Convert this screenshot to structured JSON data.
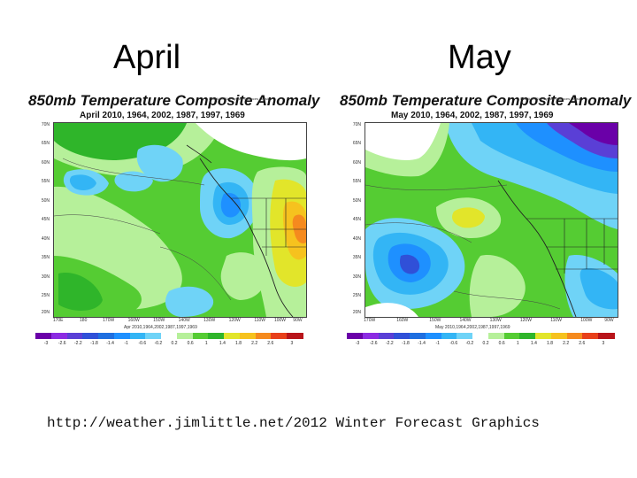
{
  "slide": {
    "left_heading": "April",
    "right_heading": "May",
    "source": "http://weather.jimlittle.net/2012 Winter Forecast Graphics"
  },
  "panels": [
    {
      "id": "april",
      "title": "850mb Temperature Composite Anomaly",
      "subtitle": "April 2010, 1964, 2002, 1987, 1997, 1969",
      "credit": "NOAA/ESRL Physical Sciences Division",
      "footer": "Apr 2010,1964,2002,1987,1997,1969",
      "lat_labels": [
        "70N",
        "65N",
        "60N",
        "55N",
        "50N",
        "45N",
        "40N",
        "35N",
        "30N",
        "25N",
        "20N"
      ],
      "lon_labels": [
        "170E",
        "180",
        "170W",
        "160W",
        "150W",
        "140W",
        "130W",
        "120W",
        "110W",
        "100W",
        "90W"
      ],
      "colorbar_labels": [
        "-3",
        "-2.6",
        "-2.2",
        "-1.8",
        "-1.4",
        "-1",
        "-0.6",
        "-0.2",
        "0.2",
        "0.6",
        "1",
        "1.4",
        "1.8",
        "2.2",
        "2.6",
        "3"
      ]
    },
    {
      "id": "may",
      "title": "850mb Temperature Composite Anomaly",
      "subtitle": "May 2010, 1964, 2002, 1987, 1997, 1969",
      "credit": "NOAA/ESRL Physical Sciences Division",
      "footer": "May 2010,1964,2002,1987,1997,1969",
      "lat_labels": [
        "70N",
        "65N",
        "60N",
        "55N",
        "50N",
        "45N",
        "40N",
        "35N",
        "30N",
        "25N",
        "20N"
      ],
      "lon_labels": [
        "170W",
        "160W",
        "150W",
        "140W",
        "130W",
        "120W",
        "110W",
        "100W",
        "90W"
      ],
      "colorbar_labels": [
        "-3",
        "-2.6",
        "-2.2",
        "-1.8",
        "-1.4",
        "-1",
        "-0.6",
        "-0.2",
        "0.2",
        "0.6",
        "1",
        "1.4",
        "1.8",
        "2.2",
        "2.6",
        "3"
      ]
    }
  ],
  "colors": {
    "scale": [
      "#6a00a8",
      "#8b2be2",
      "#5a3fd6",
      "#3050d8",
      "#1f6fe0",
      "#1e90ff",
      "#33b5f5",
      "#6fd3f7",
      "#ffffff",
      "#b6f09a",
      "#55cc33",
      "#2fb52a",
      "#e2e52a",
      "#f6c21e",
      "#f58a1e",
      "#e8401a",
      "#b8141a"
    ]
  }
}
